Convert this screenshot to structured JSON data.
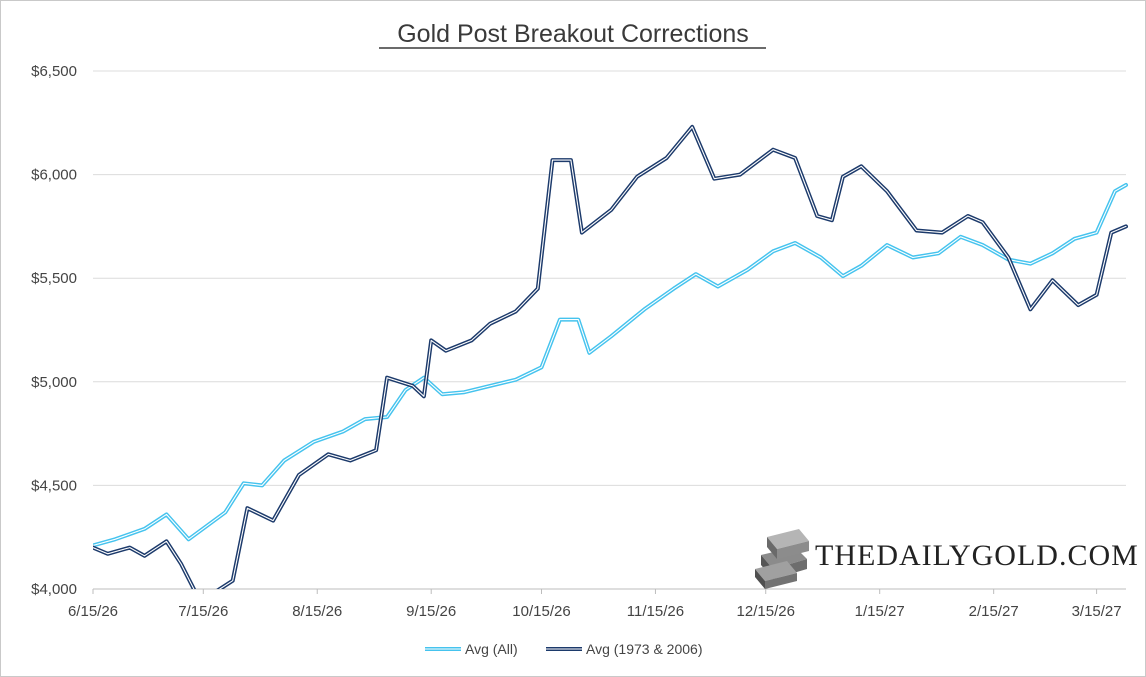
{
  "chart_data": {
    "type": "line",
    "title": "Gold Post Breakout Corrections",
    "xlabel": "",
    "ylabel": "",
    "x_ticks": [
      "6/15/26",
      "7/15/26",
      "8/15/26",
      "9/15/26",
      "10/15/26",
      "11/15/26",
      "12/15/26",
      "1/15/27",
      "2/15/27",
      "3/15/27"
    ],
    "x_range": [
      "6/15/26",
      "3/23/27"
    ],
    "y_ticks": [
      "$4,000",
      "$4,500",
      "$5,000",
      "$5,500",
      "$6,000",
      "$6,500"
    ],
    "ylim": [
      4000,
      6500
    ],
    "grid": "horizontal",
    "legend_position": "bottom",
    "series": [
      {
        "name": "Avg (All)",
        "color": "#45c3ee",
        "points": [
          [
            "6/15/26",
            4210
          ],
          [
            "6/21/26",
            4240
          ],
          [
            "6/29/26",
            4290
          ],
          [
            "7/5/26",
            4360
          ],
          [
            "7/11/26",
            4240
          ],
          [
            "7/21/26",
            4370
          ],
          [
            "7/26/26",
            4510
          ],
          [
            "7/31/26",
            4500
          ],
          [
            "8/6/26",
            4620
          ],
          [
            "8/14/26",
            4710
          ],
          [
            "8/22/26",
            4760
          ],
          [
            "8/28/26",
            4820
          ],
          [
            "9/3/26",
            4830
          ],
          [
            "9/8/26",
            4960
          ],
          [
            "9/13/26",
            5020
          ],
          [
            "9/18/26",
            4940
          ],
          [
            "9/24/26",
            4950
          ],
          [
            "10/1/26",
            4980
          ],
          [
            "10/8/26",
            5010
          ],
          [
            "10/15/26",
            5070
          ],
          [
            "10/20/26",
            5300
          ],
          [
            "10/25/26",
            5300
          ],
          [
            "10/28/26",
            5140
          ],
          [
            "11/3/26",
            5220
          ],
          [
            "11/12/26",
            5350
          ],
          [
            "11/20/26",
            5450
          ],
          [
            "11/26/26",
            5520
          ],
          [
            "12/2/26",
            5460
          ],
          [
            "12/10/26",
            5540
          ],
          [
            "12/17/26",
            5630
          ],
          [
            "12/23/26",
            5670
          ],
          [
            "12/30/26",
            5600
          ],
          [
            "1/5/27",
            5510
          ],
          [
            "1/10/27",
            5560
          ],
          [
            "1/17/27",
            5660
          ],
          [
            "1/24/27",
            5600
          ],
          [
            "1/31/27",
            5620
          ],
          [
            "2/6/27",
            5700
          ],
          [
            "2/12/27",
            5660
          ],
          [
            "2/19/27",
            5590
          ],
          [
            "2/25/27",
            5570
          ],
          [
            "3/3/27",
            5620
          ],
          [
            "3/9/27",
            5690
          ],
          [
            "3/15/27",
            5720
          ],
          [
            "3/20/27",
            5920
          ],
          [
            "3/23/27",
            5950
          ]
        ]
      },
      {
        "name": "Avg (1973 & 2006)",
        "color": "#1c3a6b",
        "points": [
          [
            "6/15/26",
            4200
          ],
          [
            "6/19/26",
            4170
          ],
          [
            "6/25/26",
            4200
          ],
          [
            "6/29/26",
            4160
          ],
          [
            "7/5/26",
            4230
          ],
          [
            "7/9/26",
            4120
          ],
          [
            "7/13/26",
            3980
          ],
          [
            "7/16/26",
            3960
          ],
          [
            "7/23/26",
            4040
          ],
          [
            "7/27/26",
            4390
          ],
          [
            "8/3/26",
            4330
          ],
          [
            "8/10/26",
            4550
          ],
          [
            "8/18/26",
            4650
          ],
          [
            "8/24/26",
            4620
          ],
          [
            "8/31/26",
            4670
          ],
          [
            "9/3/26",
            5020
          ],
          [
            "9/10/26",
            4980
          ],
          [
            "9/13/26",
            4930
          ],
          [
            "9/15/26",
            5200
          ],
          [
            "9/19/26",
            5150
          ],
          [
            "9/26/26",
            5200
          ],
          [
            "10/1/26",
            5280
          ],
          [
            "10/8/26",
            5340
          ],
          [
            "10/14/26",
            5450
          ],
          [
            "10/18/26",
            6070
          ],
          [
            "10/23/26",
            6070
          ],
          [
            "10/26/26",
            5720
          ],
          [
            "11/3/26",
            5830
          ],
          [
            "11/10/26",
            5990
          ],
          [
            "11/18/26",
            6080
          ],
          [
            "11/25/26",
            6230
          ],
          [
            "12/1/26",
            5980
          ],
          [
            "12/8/26",
            6000
          ],
          [
            "12/17/26",
            6120
          ],
          [
            "12/23/26",
            6080
          ],
          [
            "12/29/26",
            5800
          ],
          [
            "1/2/27",
            5780
          ],
          [
            "1/5/27",
            5990
          ],
          [
            "1/10/27",
            6040
          ],
          [
            "1/17/27",
            5920
          ],
          [
            "1/25/27",
            5730
          ],
          [
            "2/1/27",
            5720
          ],
          [
            "2/8/27",
            5800
          ],
          [
            "2/12/27",
            5770
          ],
          [
            "2/19/27",
            5600
          ],
          [
            "2/25/27",
            5350
          ],
          [
            "3/3/27",
            5490
          ],
          [
            "3/10/27",
            5370
          ],
          [
            "3/15/27",
            5420
          ],
          [
            "3/19/27",
            5720
          ],
          [
            "3/23/27",
            5750
          ]
        ]
      }
    ],
    "watermark": "THEDAILYGOLD.COM"
  }
}
